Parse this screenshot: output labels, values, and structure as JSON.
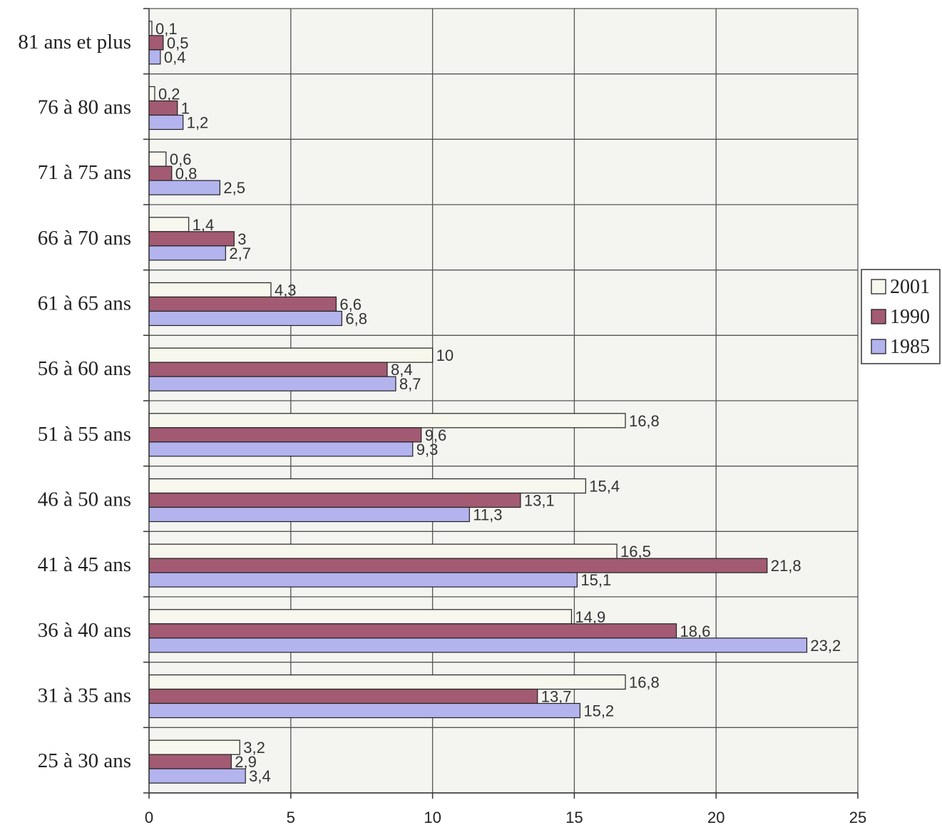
{
  "chart_data": {
    "type": "bar",
    "orientation": "horizontal",
    "categories": [
      "25 à 30 ans",
      "31 à 35 ans",
      "36 à 40 ans",
      "41 à 45 ans",
      "46 à 50 ans",
      "51 à 55 ans",
      "56 à 60 ans",
      "61 à 65 ans",
      "66 à 70 ans",
      "71 à 75 ans",
      "76 à 80 ans",
      "81 ans et plus"
    ],
    "series": [
      {
        "name": "2001",
        "color": "#f7f7ee",
        "values": [
          3.2,
          16.8,
          14.9,
          16.5,
          15.4,
          16.8,
          10,
          4.3,
          1.4,
          0.6,
          0.2,
          0.1
        ],
        "labels": [
          "3,2",
          "16,8",
          "14,9",
          "16,5",
          "15,4",
          "16,8",
          "10",
          "4,3",
          "1,4",
          "0,6",
          "0,2",
          "0,1"
        ]
      },
      {
        "name": "1990",
        "color": "#a35a73",
        "values": [
          2.9,
          13.7,
          18.6,
          21.8,
          13.1,
          9.6,
          8.4,
          6.6,
          3,
          0.8,
          1,
          0.5
        ],
        "labels": [
          "2,9",
          "13,7",
          "18,6",
          "21,8",
          "13,1",
          "9,6",
          "8,4",
          "6,6",
          "3",
          "0,8",
          "1",
          "0,5"
        ]
      },
      {
        "name": "1985",
        "color": "#b3b3ee",
        "values": [
          3.4,
          15.2,
          23.2,
          15.1,
          11.3,
          9.3,
          8.7,
          6.8,
          2.7,
          2.5,
          1.2,
          0.4
        ],
        "labels": [
          "3,4",
          "15,2",
          "23,2",
          "15,1",
          "11,3",
          "9,3",
          "8,7",
          "6,8",
          "2,7",
          "2,5",
          "1,2",
          "0,4"
        ]
      }
    ],
    "xlim": [
      0,
      25
    ],
    "xticks": [
      0,
      5,
      10,
      15,
      20,
      25
    ],
    "xtick_labels": [
      "0",
      "5",
      "10",
      "15",
      "20",
      "25"
    ],
    "grid": true,
    "legend": "right",
    "title": "",
    "xlabel": "",
    "ylabel": ""
  }
}
